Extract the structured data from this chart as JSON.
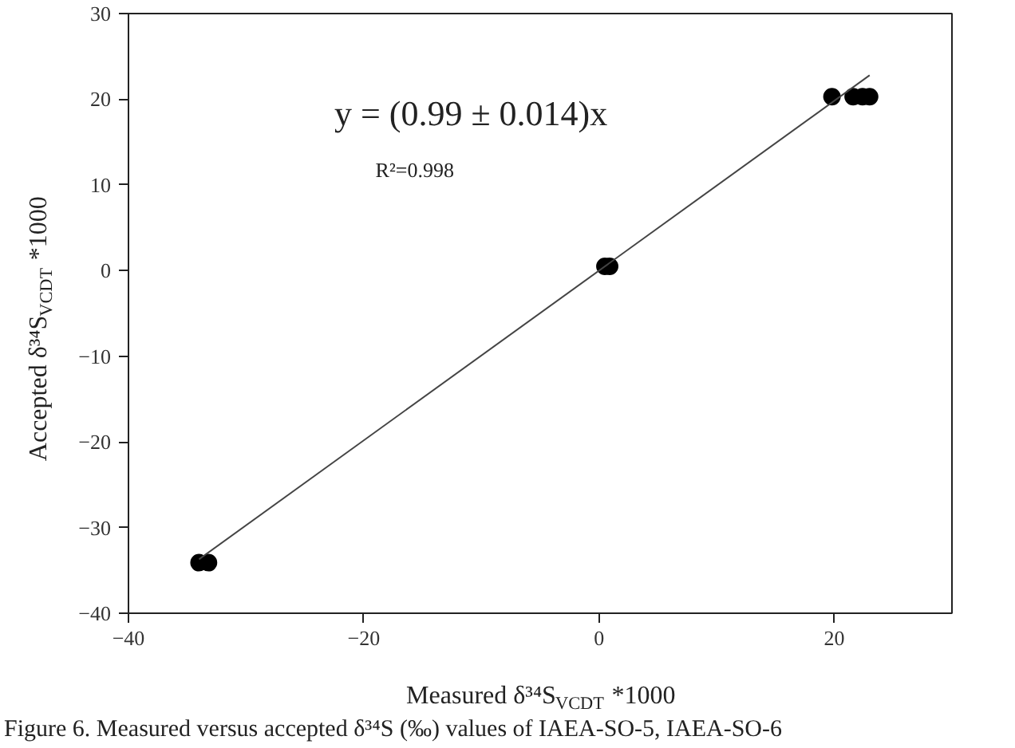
{
  "chart_data": {
    "type": "scatter",
    "xlabel": "Measured δ³⁴S$_{VCDT}$ *1000",
    "ylabel": "Accepted δ³⁴S$_{VCDT}$ *1000",
    "annotations": [
      "y = (0.99 ± 0.014)x",
      "R²=0.998",
      "Figure 6. Measured versus accepted δ³⁴S (‰) values of IAEA-SO-5, IAEA-SO-6"
    ],
    "series": [
      {
        "color": "#000000",
        "marker": "circle",
        "x": [
          -34.0,
          -33.2,
          0.5,
          0.9,
          19.8,
          21.6,
          22.4,
          23.0
        ],
        "values": [
          -34.1,
          -34.1,
          0.5,
          0.5,
          20.3,
          20.3,
          20.3,
          20.3
        ]
      },
      {
        "type": "line",
        "color": "#444444",
        "marker": "none",
        "line_style": "solid",
        "x": [
          -34.0,
          23.0
        ],
        "values": [
          -33.7,
          22.8
        ]
      }
    ],
    "xlim": [
      -40,
      30
    ],
    "ylim": [
      -40,
      30
    ],
    "xticks": [
      -40,
      -20,
      0,
      20
    ],
    "yticks": [
      -40,
      -30,
      -20,
      -10,
      0,
      10,
      20,
      30
    ],
    "grid": false
  }
}
